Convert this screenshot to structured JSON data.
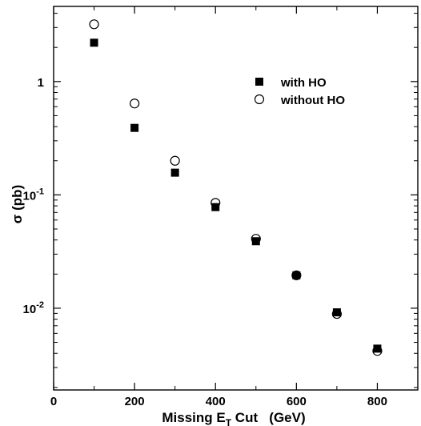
{
  "chart_data": {
    "type": "scatter",
    "xlabel": {
      "prefix": "Missing E",
      "sub": "T",
      "suffix": " Cut   (GeV)"
    },
    "ylabel": "σ (pb)",
    "xlim": [
      0,
      900
    ],
    "ylim": [
      0.0019,
      4.6
    ],
    "y_scale": "log",
    "grid": false,
    "legend_position": "upper-right",
    "x_ticks": [
      0,
      200,
      400,
      600,
      800
    ],
    "y_ticks": [
      {
        "value": 1,
        "base": "1",
        "exp": ""
      },
      {
        "value": 0.1,
        "base": "10",
        "exp": "-1"
      },
      {
        "value": 0.01,
        "base": "10",
        "exp": "-2"
      }
    ],
    "series": [
      {
        "name": "with HO",
        "marker": "filled-square",
        "x": [
          100,
          200,
          300,
          400,
          500,
          600,
          700,
          800
        ],
        "y": [
          2.2,
          0.39,
          0.157,
          0.078,
          0.039,
          0.0195,
          0.0092,
          0.0044
        ]
      },
      {
        "name": "without HO",
        "marker": "open-circle",
        "x": [
          100,
          200,
          300,
          400,
          500,
          600,
          700,
          800
        ],
        "y": [
          3.2,
          0.64,
          0.2,
          0.085,
          0.041,
          0.0195,
          0.0089,
          0.0042
        ]
      }
    ]
  }
}
